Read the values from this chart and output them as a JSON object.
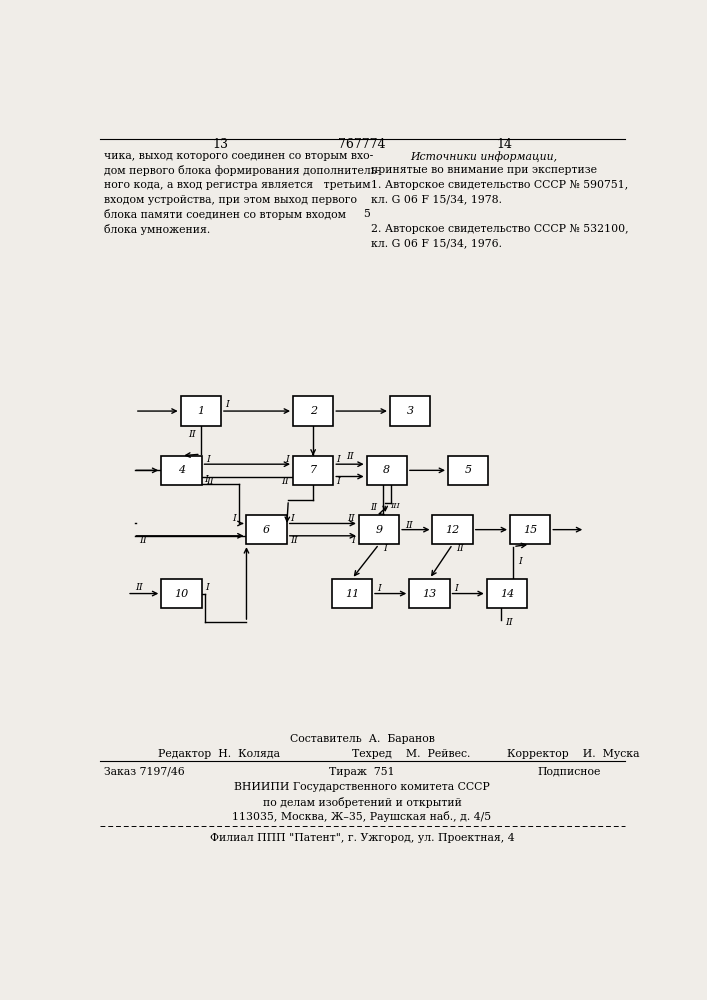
{
  "bg_color": "#f0ede8",
  "page_header": {
    "left_num": "13",
    "center_num": "767774",
    "right_num": "14"
  },
  "left_text": [
    "чика, выход которого соединен со вторым вхо-",
    "дом первого блока формирования дополнитель-",
    "ного кода, а вход регистра является   третьим",
    "входом устройства, при этом выход первого",
    "блока памяти соединен со вторым входом",
    "блока умножения."
  ],
  "right_text_title": "Источники информации,",
  "right_text_subtitle": "принятые во внимание при экспертизе",
  "right_refs": [
    "1. Авторское свидетельство СССР № 590751,",
    "кл. G 06 F 15/34, 1978.",
    "",
    "2. Авторское свидетельство СССР № 532100,",
    "кл. G 06 F 15/34, 1976."
  ],
  "right_ref_num": "5",
  "footer_compositor": "Составитель  А.  Баранов",
  "footer_editor": "Редактор  Н.  Коляда",
  "footer_tehred": "Техред    М.  Рейвес.",
  "footer_corrector": "Корректор    И.  Муска",
  "footer_order": "Заказ 7197/46",
  "footer_tirazh": "Тираж  751",
  "footer_podpisnoe": "Подписное",
  "footer_org1": "ВНИИПИ Государственного комитета СССР",
  "footer_org2": "по делам изобретений и открытий",
  "footer_org3": "113035, Москва, Ж–35, Раушская наб., д. 4/5",
  "footer_filial": "Филиал ППП \"Патент\", г. Ужгород, ул. Проектная, 4"
}
